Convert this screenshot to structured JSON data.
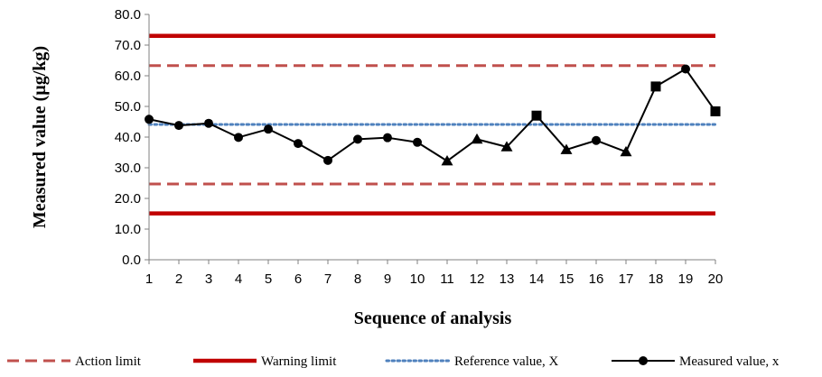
{
  "chart_data": {
    "type": "line",
    "xlabel": "Sequence of analysis",
    "ylabel": "Measured value (µg/kg)",
    "x": [
      1,
      2,
      3,
      4,
      5,
      6,
      7,
      8,
      9,
      10,
      11,
      12,
      13,
      14,
      15,
      16,
      17,
      18,
      19,
      20
    ],
    "ylim": [
      0,
      80
    ],
    "y_ticks": [
      "0.0",
      "10.0",
      "20.0",
      "30.0",
      "40.0",
      "50.0",
      "60.0",
      "70.0",
      "80.0"
    ],
    "x_ticks": [
      "1",
      "2",
      "3",
      "4",
      "5",
      "6",
      "7",
      "8",
      "9",
      "10",
      "11",
      "12",
      "13",
      "14",
      "15",
      "16",
      "17",
      "18",
      "19",
      "20"
    ],
    "grid": false,
    "legend_position": "bottom",
    "series": [
      {
        "name": "Measured value, x",
        "values": [
          45.8,
          43.8,
          44.5,
          39.9,
          42.6,
          37.9,
          32.4,
          39.3,
          39.8,
          38.3,
          32.2,
          39.3,
          36.8,
          47.0,
          35.9,
          38.9,
          35.2,
          56.5,
          62.2,
          48.4
        ],
        "markers": [
          "circle",
          "circle",
          "circle",
          "circle",
          "circle",
          "circle",
          "circle",
          "circle",
          "circle",
          "circle",
          "triangle",
          "triangle",
          "triangle",
          "square",
          "triangle",
          "circle",
          "triangle",
          "square",
          "circle",
          "square"
        ],
        "color": "#000000"
      }
    ],
    "reference_lines": [
      {
        "name": "Action limit",
        "style": "dashed",
        "color": "#C0504D",
        "values": [
          63.3,
          24.7
        ]
      },
      {
        "name": "Warning limit",
        "style": "solid",
        "color": "#C00000",
        "values": [
          73.0,
          15.1
        ]
      },
      {
        "name": "Reference value, X",
        "style": "dotted",
        "color": "#4F81BD",
        "values": [
          44.1
        ]
      }
    ]
  }
}
